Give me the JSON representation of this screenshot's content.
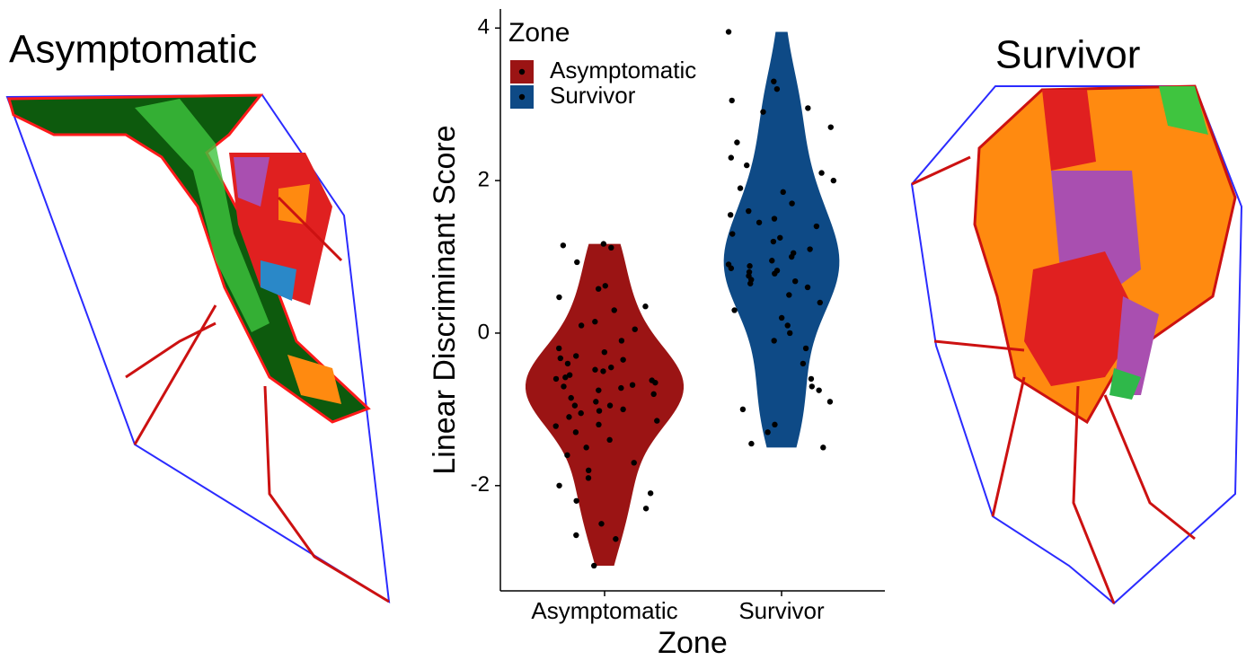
{
  "chart_data": {
    "type": "violin",
    "left_image_title": "Asymptomatic",
    "right_image_title": "Survivor",
    "x_label": "Zone",
    "y_label": "Linear Discriminant Score",
    "legend_title": "Zone",
    "categories": [
      "Asymptomatic",
      "Survivor"
    ],
    "series": [
      {
        "name": "Asymptomatic",
        "color": "#9b1414",
        "values": [
          1.17,
          1.12,
          1.15,
          0.93,
          0.58,
          0.62,
          0.47,
          0.35,
          0.3,
          0.15,
          0.1,
          0.05,
          -0.1,
          -0.2,
          -0.25,
          -0.3,
          -0.35,
          -0.4,
          -0.45,
          -0.5,
          -0.55,
          -0.6,
          -0.62,
          -0.65,
          -0.7,
          -0.75,
          -0.8,
          -0.85,
          -0.9,
          -0.95,
          -1.0,
          -1.05,
          -1.1,
          -1.15,
          -1.2,
          -1.3,
          -1.4,
          -1.5,
          -1.6,
          -1.7,
          -1.8,
          -1.9,
          -2.0,
          -2.1,
          -2.2,
          -2.3,
          -2.5,
          -2.65,
          -2.7,
          -3.05,
          -0.68,
          -0.72,
          -0.58,
          -0.95,
          -1.02,
          -0.33,
          -1.22,
          -0.48
        ]
      },
      {
        "name": "Survivor",
        "color": "#0e4a86",
        "values": [
          3.95,
          3.3,
          3.2,
          3.05,
          2.95,
          2.9,
          2.7,
          2.5,
          2.3,
          2.2,
          2.1,
          2.0,
          1.9,
          1.85,
          1.7,
          1.6,
          1.5,
          1.45,
          1.4,
          1.3,
          1.25,
          1.2,
          1.1,
          1.0,
          0.95,
          0.9,
          0.85,
          0.8,
          0.75,
          0.7,
          0.65,
          0.6,
          0.5,
          0.4,
          0.3,
          0.2,
          0.1,
          0.0,
          -0.1,
          -0.2,
          -0.4,
          -0.6,
          -0.7,
          -0.75,
          -0.9,
          -1.0,
          -1.2,
          -1.3,
          -1.45,
          -1.5,
          0.82,
          0.78,
          1.05,
          0.68,
          0.88,
          1.55
        ]
      }
    ],
    "point_color": "#000000",
    "ylim": [
      -3.38,
      4.25
    ],
    "yticks": [
      -2,
      0,
      2,
      4
    ]
  }
}
